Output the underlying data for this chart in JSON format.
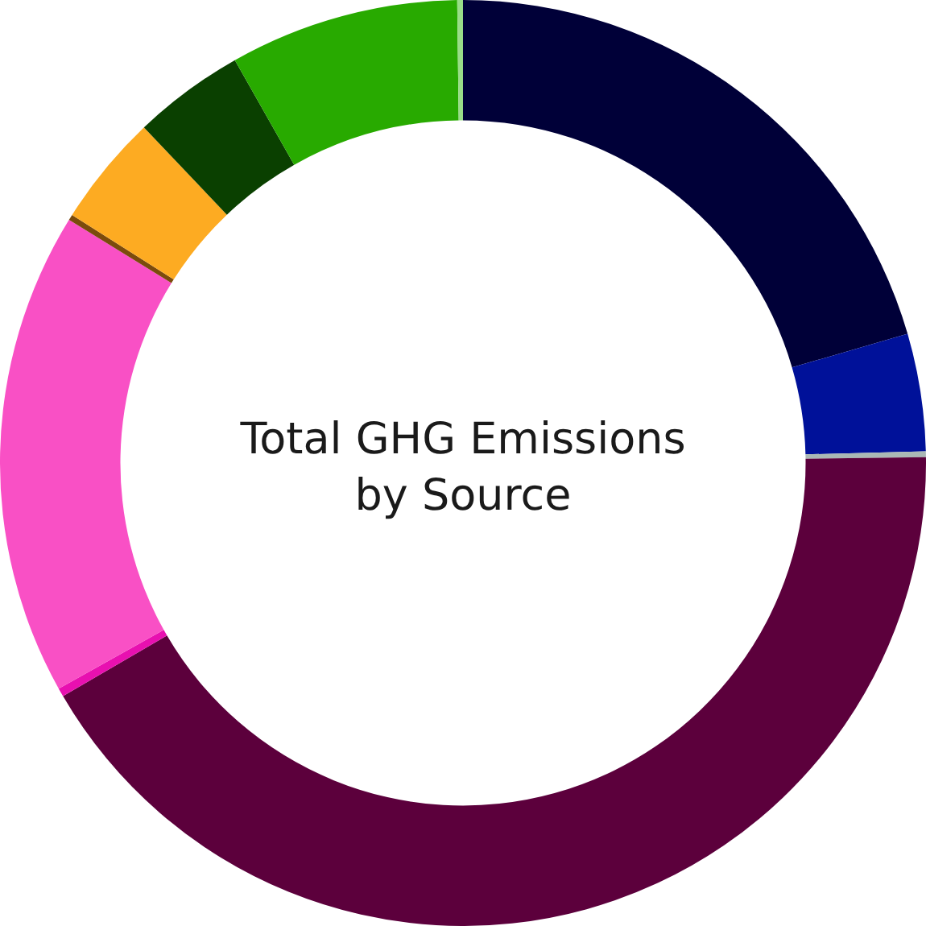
{
  "chart_data": {
    "type": "donut",
    "title": "Total GHG Emissions\nby Source",
    "categories": [
      null,
      null,
      null,
      null,
      null,
      null,
      null,
      null,
      null,
      null,
      null
    ],
    "values": [
      20.5,
      4.1,
      0.2,
      41.8,
      0.3,
      16.9,
      0.2,
      3.9,
      3.9,
      8.0,
      0.2
    ],
    "colors": [
      "#000038",
      "#001199",
      "#aab8b5",
      "#5c003c",
      "#e810b0",
      "#f950c5",
      "#7b4b0c",
      "#fdab22",
      "#0a4000",
      "#28aa00",
      "#99dd88"
    ]
  }
}
